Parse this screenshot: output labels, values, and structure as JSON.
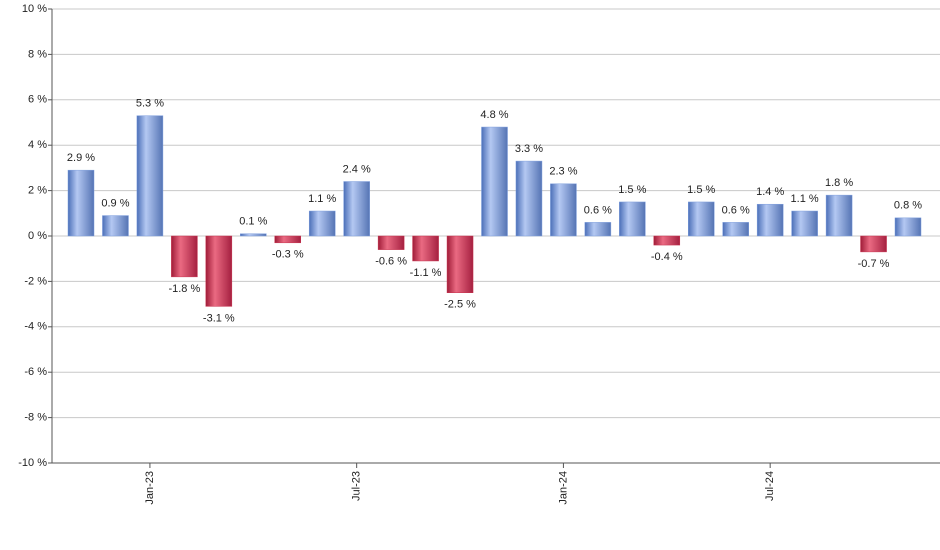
{
  "chart_data": {
    "type": "bar",
    "categories": [
      null,
      null,
      "Jan-23",
      null,
      null,
      null,
      null,
      null,
      "Jul-23",
      null,
      null,
      null,
      null,
      null,
      "Jan-24",
      null,
      null,
      null,
      null,
      null,
      "Jul-24",
      null,
      null,
      null,
      null
    ],
    "values": [
      2.9,
      0.9,
      5.3,
      -1.8,
      -3.1,
      0.1,
      -0.3,
      1.1,
      2.4,
      -0.6,
      -1.1,
      -2.5,
      4.8,
      3.3,
      2.3,
      0.6,
      1.5,
      -0.4,
      1.5,
      0.6,
      1.4,
      1.1,
      1.8,
      -0.7,
      0.8
    ],
    "value_labels": [
      "2.9 %",
      "0.9 %",
      "5.3 %",
      "-1.8 %",
      "-3.1 %",
      "0.1 %",
      "-0.3 %",
      "1.1 %",
      "2.4 %",
      "-0.6 %",
      "-1.1 %",
      "-2.5 %",
      "4.8 %",
      "3.3 %",
      "2.3 %",
      "0.6 %",
      "1.5 %",
      "-0.4 %",
      "1.5 %",
      "0.6 %",
      "1.4 %",
      "1.1 %",
      "1.8 %",
      "-0.7 %",
      "0.8 %"
    ],
    "positive_color": "#7f9fdd",
    "negative_color": "#c8344f",
    "ylim": [
      -10,
      10
    ],
    "yticks": [
      {
        "value": -10,
        "label": "-10 %"
      },
      {
        "value": -8,
        "label": "-8 %"
      },
      {
        "value": -6,
        "label": "-6 %"
      },
      {
        "value": -4,
        "label": "-4 %"
      },
      {
        "value": -2,
        "label": "-2 %"
      },
      {
        "value": 0,
        "label": "0 %"
      },
      {
        "value": 2,
        "label": "2 %"
      },
      {
        "value": 4,
        "label": "4 %"
      },
      {
        "value": 6,
        "label": "6 %"
      },
      {
        "value": 8,
        "label": "8 %"
      },
      {
        "value": 10,
        "label": "10 %"
      }
    ],
    "grid": true
  }
}
